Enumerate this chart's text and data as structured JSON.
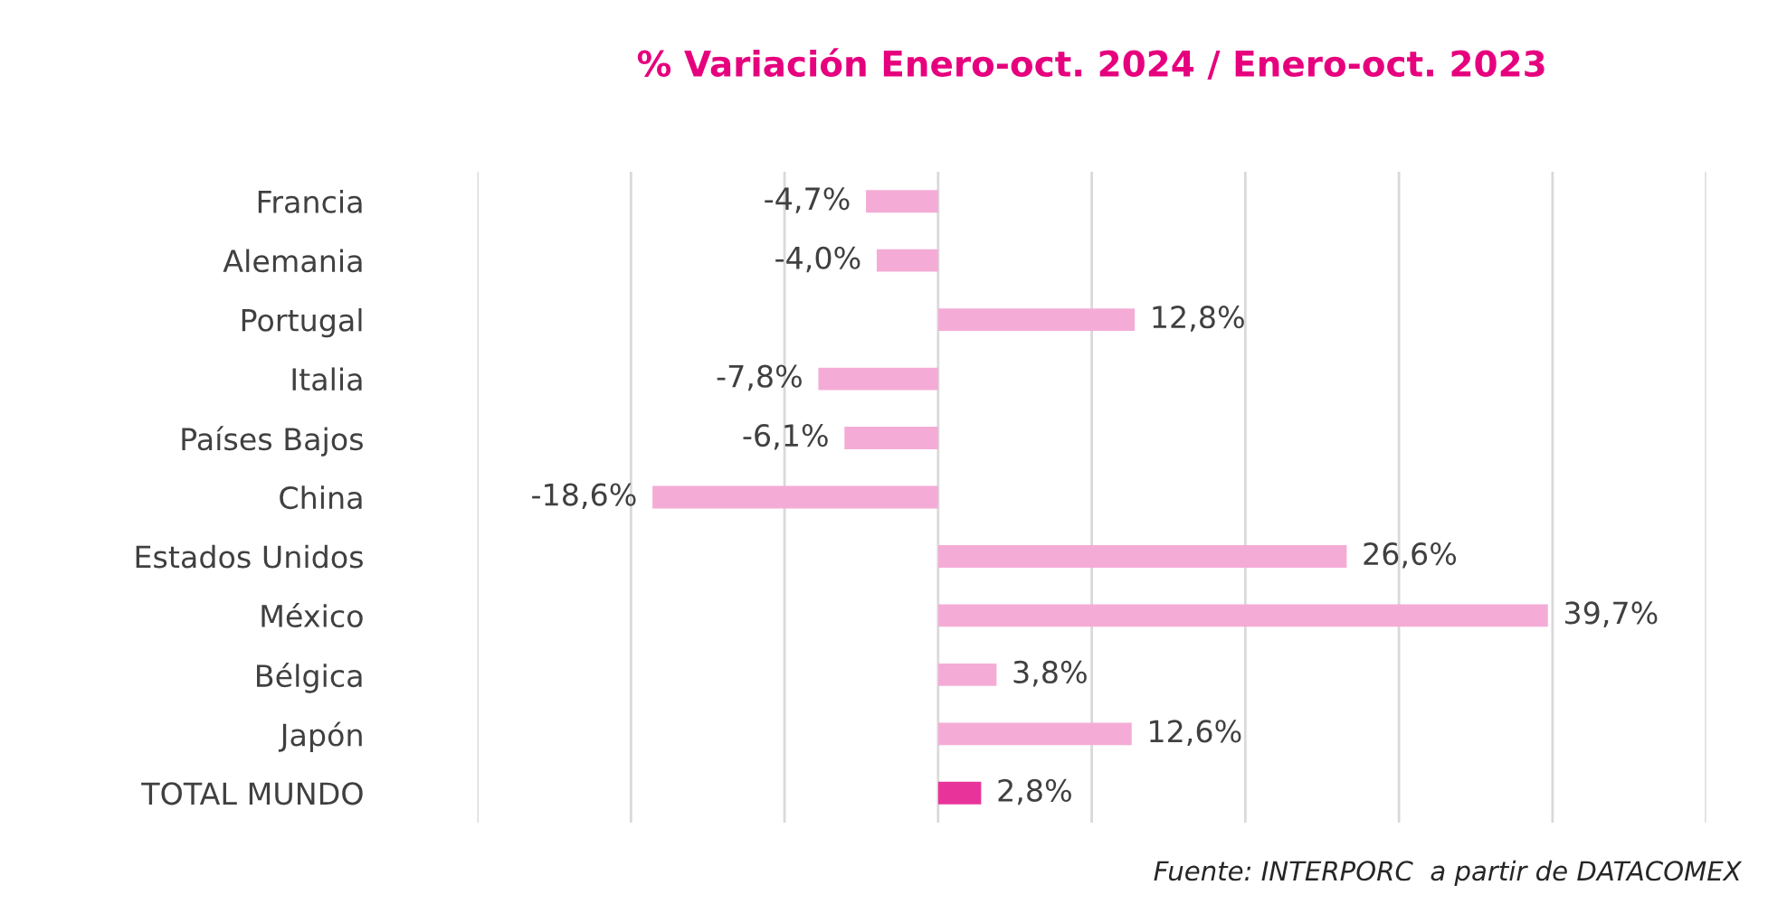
{
  "chart_data": {
    "type": "bar",
    "orientation": "horizontal",
    "title": "% Variación Enero-oct. 2024 / Enero-oct. 2023",
    "categories": [
      "Francia",
      "Alemania",
      "Portugal",
      "Italia",
      "Países Bajos",
      "China",
      "Estados Unidos",
      "México",
      "Bélgica",
      "Japón",
      "TOTAL MUNDO"
    ],
    "values": [
      -4.7,
      -4.0,
      12.8,
      -7.8,
      -6.1,
      -18.6,
      26.6,
      39.7,
      3.8,
      12.6,
      2.8
    ],
    "value_labels": [
      "-4,7%",
      "-4,0%",
      "12,8%",
      "-7,8%",
      "-6,1%",
      "-18,6%",
      "26,6%",
      "39,7%",
      "3,8%",
      "12,6%",
      "2,8%"
    ],
    "colors": [
      "#f4acd6",
      "#f4acd6",
      "#f4acd6",
      "#f4acd6",
      "#f4acd6",
      "#f4acd6",
      "#f4acd6",
      "#f4acd6",
      "#f4acd6",
      "#f4acd6",
      "#e8349a"
    ],
    "xlim": [
      -30,
      50
    ],
    "xticks": [
      {
        "value": -30,
        "label": null
      },
      {
        "value": -20,
        "label": null
      },
      {
        "value": -10,
        "label": null
      },
      {
        "value": 0,
        "label": null
      },
      {
        "value": 10,
        "label": null
      },
      {
        "value": 20,
        "label": null
      },
      {
        "value": 30,
        "label": null
      },
      {
        "value": 40,
        "label": null
      },
      {
        "value": 50,
        "label": null
      }
    ],
    "grid": "x",
    "tick_labels": "y",
    "annotations": [
      "Fuente: INTERPORC  a partir de DATACOMEX"
    ]
  }
}
